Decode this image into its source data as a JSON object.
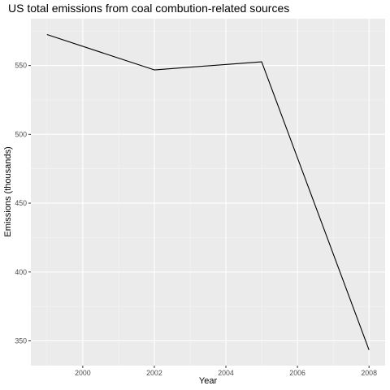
{
  "chart_data": {
    "type": "line",
    "title": "US total emissions from coal combution-related sources",
    "xlabel": "Year",
    "ylabel": "Emissions (thousands)",
    "x": [
      1999,
      2002,
      2005,
      2008
    ],
    "series": [
      {
        "values": [
          572.5,
          546.8,
          552.7,
          343.4
        ]
      }
    ],
    "xlim": [
      1998.55,
      2008.45
    ],
    "ylim": [
      332,
      584
    ],
    "x_ticks": [
      2000,
      2002,
      2004,
      2006,
      2008
    ],
    "x_tick_labels": [
      "2000",
      "2002",
      "2004",
      "2006",
      "2008"
    ],
    "y_ticks": [
      350,
      400,
      450,
      500,
      550
    ],
    "y_tick_labels": [
      "350",
      "400",
      "450",
      "500",
      "550"
    ],
    "grid": true,
    "legend": "none",
    "colors": {
      "panel_background": "#ebebeb",
      "grid_major": "#ffffff",
      "grid_minor": "#f5f5f5",
      "line": "#000000",
      "tick_text": "#4d4d4d",
      "tick_mark": "#333333"
    }
  }
}
